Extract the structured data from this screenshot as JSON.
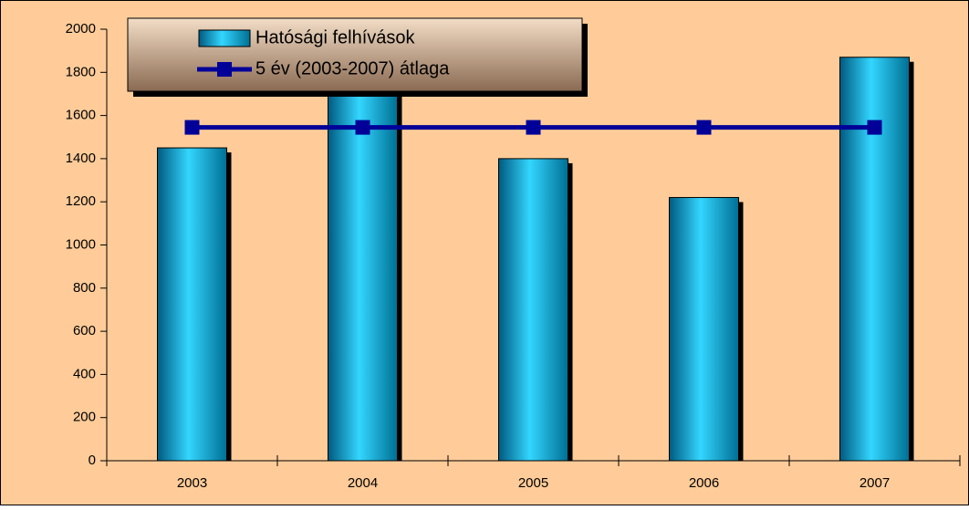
{
  "chart_data": {
    "type": "bar",
    "categories": [
      "2003",
      "2004",
      "2005",
      "2006",
      "2007"
    ],
    "series": [
      {
        "name": "Hatósági felhívások",
        "type": "bar",
        "color": "#00b4e6",
        "values": [
          1450,
          1785,
          1400,
          1220,
          1870
        ]
      },
      {
        "name": "5 év (2003-2007) átlaga",
        "type": "line",
        "color": "#000099",
        "values": [
          1545,
          1545,
          1545,
          1545,
          1545
        ]
      }
    ],
    "ylim": [
      0,
      2000
    ],
    "yticks": [
      0,
      200,
      400,
      600,
      800,
      1000,
      1200,
      1400,
      1600,
      1800,
      2000
    ],
    "background": "#ffcc99",
    "legend": "top-left"
  }
}
